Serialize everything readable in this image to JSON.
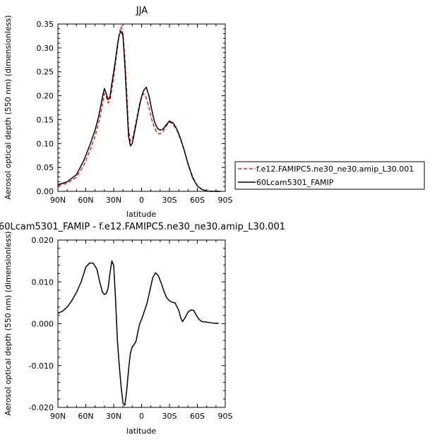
{
  "chart_data": [
    {
      "type": "line",
      "title": "JJA",
      "xlabel": "latitude",
      "ylabel": "Aerosol optical depth (550 nm) (dimensionless)",
      "xlim": [
        90,
        -90
      ],
      "ylim": [
        0,
        0.35
      ],
      "x_ticks": [
        {
          "value": 90,
          "label": "90N"
        },
        {
          "value": 60,
          "label": "60N"
        },
        {
          "value": 30,
          "label": "30N"
        },
        {
          "value": 0,
          "label": "0"
        },
        {
          "value": -30,
          "label": "30S"
        },
        {
          "value": -60,
          "label": "60S"
        },
        {
          "value": -90,
          "label": "90S"
        }
      ],
      "y_ticks": [
        {
          "value": 0.0,
          "label": "0.00"
        },
        {
          "value": 0.05,
          "label": "0.05"
        },
        {
          "value": 0.1,
          "label": "0.10"
        },
        {
          "value": 0.15,
          "label": "0.15"
        },
        {
          "value": 0.2,
          "label": "0.20"
        },
        {
          "value": 0.25,
          "label": "0.25"
        },
        {
          "value": 0.3,
          "label": "0.30"
        },
        {
          "value": 0.35,
          "label": "0.35"
        }
      ],
      "legend": {
        "placement": "right"
      },
      "series": [
        {
          "name": "f.e12.FAMIPC5.ne30_ne30.amip_L30.001",
          "color": "#e41a1c",
          "dash": "dashed",
          "x": [
            90,
            80,
            70,
            62,
            55,
            50,
            46,
            44,
            42,
            40,
            38,
            36,
            34,
            32,
            30,
            28,
            26,
            24,
            22,
            20,
            18,
            16,
            14,
            12,
            10,
            8,
            6,
            4,
            2,
            0,
            -2,
            -5,
            -8,
            -11,
            -14,
            -17,
            -20,
            -23,
            -26,
            -30,
            -34,
            -38,
            -42,
            -46,
            -50,
            -55,
            -60,
            -65,
            -70,
            -75,
            -80,
            -85
          ],
          "y": [
            0.012,
            0.017,
            0.03,
            0.055,
            0.088,
            0.115,
            0.145,
            0.162,
            0.183,
            0.205,
            0.198,
            0.185,
            0.19,
            0.215,
            0.24,
            0.268,
            0.3,
            0.33,
            0.345,
            0.33,
            0.28,
            0.21,
            0.13,
            0.105,
            0.108,
            0.125,
            0.145,
            0.165,
            0.185,
            0.198,
            0.205,
            0.196,
            0.175,
            0.15,
            0.132,
            0.122,
            0.12,
            0.125,
            0.135,
            0.145,
            0.14,
            0.128,
            0.108,
            0.085,
            0.058,
            0.03,
            0.012,
            0.004,
            0.001,
            0.0,
            0.0,
            0.0
          ]
        },
        {
          "name": "60Lcam5301_FAMIP",
          "color": "#000000",
          "dash": "solid",
          "x": [
            90,
            80,
            70,
            62,
            55,
            50,
            46,
            44,
            42,
            40,
            38,
            36,
            34,
            32,
            30,
            28,
            26,
            24,
            22,
            20,
            18,
            16,
            14,
            12,
            10,
            8,
            6,
            4,
            2,
            0,
            -2,
            -5,
            -8,
            -11,
            -14,
            -17,
            -20,
            -23,
            -26,
            -30,
            -34,
            -38,
            -42,
            -46,
            -50,
            -55,
            -60,
            -65,
            -70,
            -75,
            -80,
            -85
          ],
          "y": [
            0.014,
            0.02,
            0.035,
            0.065,
            0.1,
            0.128,
            0.158,
            0.178,
            0.198,
            0.215,
            0.205,
            0.192,
            0.197,
            0.225,
            0.25,
            0.275,
            0.305,
            0.328,
            0.335,
            0.325,
            0.265,
            0.19,
            0.115,
            0.095,
            0.1,
            0.12,
            0.14,
            0.16,
            0.18,
            0.198,
            0.21,
            0.218,
            0.2,
            0.17,
            0.145,
            0.132,
            0.128,
            0.13,
            0.138,
            0.147,
            0.143,
            0.13,
            0.11,
            0.085,
            0.057,
            0.028,
            0.011,
            0.004,
            0.001,
            0.0,
            0.0,
            0.0
          ]
        }
      ]
    },
    {
      "type": "line",
      "title": "60Lcam5301_FAMIP - f.e12.FAMIPC5.ne30_ne30.amip_L30.001",
      "xlabel": "latitude",
      "ylabel": "Aerosol optical depth (550 nm) (dimensionless)",
      "xlim": [
        90,
        -90
      ],
      "ylim": [
        -0.02,
        0.02
      ],
      "x_ticks": [
        {
          "value": 90,
          "label": "90N"
        },
        {
          "value": 60,
          "label": "60N"
        },
        {
          "value": 30,
          "label": "30N"
        },
        {
          "value": 0,
          "label": "0"
        },
        {
          "value": -30,
          "label": "30S"
        },
        {
          "value": -60,
          "label": "60S"
        },
        {
          "value": -90,
          "label": "90S"
        }
      ],
      "y_ticks": [
        {
          "value": -0.02,
          "label": "-0.020"
        },
        {
          "value": -0.01,
          "label": "-0.010"
        },
        {
          "value": 0.0,
          "label": "0.000"
        },
        {
          "value": 0.01,
          "label": "0.010"
        },
        {
          "value": 0.02,
          "label": "0.020"
        }
      ],
      "series": [
        {
          "color": "#000000",
          "dash": "solid",
          "x": [
            90,
            85,
            80,
            75,
            70,
            65,
            60,
            56,
            52,
            48,
            45,
            42,
            40,
            38,
            36,
            34,
            32,
            30,
            28,
            26,
            24,
            22,
            20,
            18,
            16,
            14,
            12,
            10,
            8,
            6,
            4,
            2,
            0,
            -3,
            -6,
            -9,
            -12,
            -15,
            -18,
            -21,
            -24,
            -27,
            -30,
            -33,
            -36,
            -40,
            -42,
            -44,
            -47,
            -50,
            -53,
            -56,
            -59,
            -62,
            -65,
            -70,
            -75,
            -80,
            -83
          ],
          "y": [
            0.0025,
            0.003,
            0.004,
            0.0055,
            0.0075,
            0.01,
            0.0135,
            0.0145,
            0.0145,
            0.013,
            0.01,
            0.0075,
            0.007,
            0.0072,
            0.0085,
            0.012,
            0.015,
            0.014,
            0.006,
            -0.004,
            -0.01,
            -0.015,
            -0.019,
            -0.0195,
            -0.016,
            -0.011,
            -0.007,
            -0.0055,
            -0.005,
            -0.0042,
            -0.002,
            0.0,
            0.001,
            0.003,
            0.005,
            0.008,
            0.011,
            0.0122,
            0.0115,
            0.0098,
            0.0078,
            0.0062,
            0.0055,
            0.0051,
            0.005,
            0.0032,
            0.0015,
            0.0005,
            0.0015,
            0.0028,
            0.0033,
            0.0032,
            0.002,
            0.001,
            0.0005,
            0.0004,
            0.0002,
            0.0001,
            0.0001
          ]
        }
      ]
    }
  ]
}
